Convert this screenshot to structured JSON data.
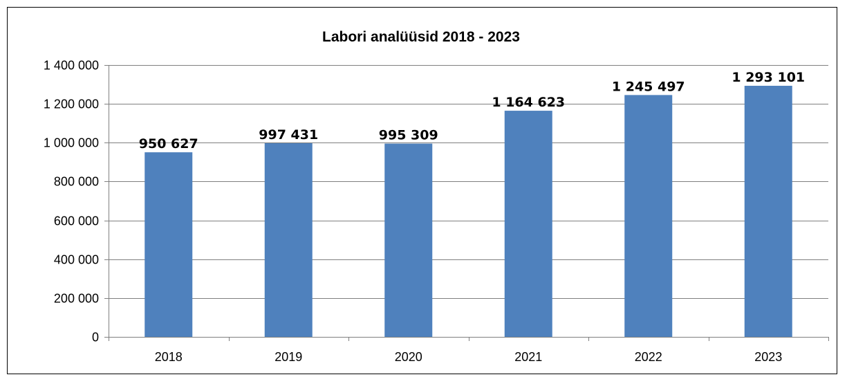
{
  "chart_data": {
    "type": "bar",
    "title": "Labori analüüsid 2018 - 2023",
    "xlabel": "",
    "ylabel": "",
    "categories": [
      "2018",
      "2019",
      "2020",
      "2021",
      "2022",
      "2023"
    ],
    "values": [
      950627,
      997431,
      995309,
      1164623,
      1245497,
      1293101
    ],
    "data_labels": [
      "950 627",
      "997 431",
      "995 309",
      "1 164 623",
      "1 245 497",
      "1 293 101"
    ],
    "ylim": [
      0,
      1400000
    ],
    "y_ticks": [
      0,
      200000,
      400000,
      600000,
      800000,
      1000000,
      1200000,
      1400000
    ],
    "y_tick_labels": [
      "0",
      "200 000",
      "400 000",
      "600 000",
      "800 000",
      "1 000 000",
      "1 200 000",
      "1 400 000"
    ],
    "grid": true,
    "legend": "none",
    "bar_color": "#4f81bd"
  }
}
